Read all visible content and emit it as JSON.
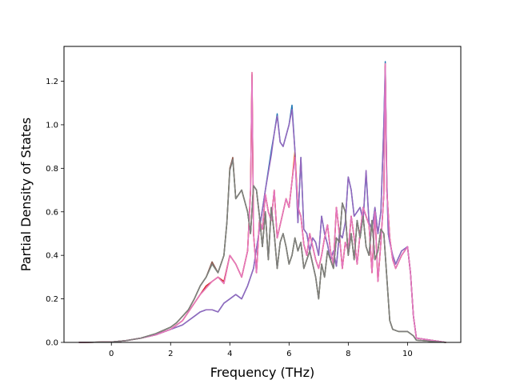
{
  "chart_data": {
    "type": "line",
    "xlabel": "Frequency (THz)",
    "ylabel": "Partial Density of States",
    "xlim": [
      -1.6,
      11.8
    ],
    "ylim": [
      0.0,
      1.36
    ],
    "xticks": [
      0,
      2,
      4,
      6,
      8,
      10
    ],
    "yticks": [
      0.0,
      0.2,
      0.4,
      0.6,
      0.8,
      1.0,
      1.2
    ],
    "xtick_labels": [
      "0",
      "2",
      "4",
      "6",
      "8",
      "10"
    ],
    "ytick_labels": [
      "0.0",
      "0.2",
      "0.4",
      "0.6",
      "0.8",
      "1.0",
      "1.2"
    ],
    "grid": false,
    "series": [
      {
        "color": "#1f77b4",
        "x": [
          -1.1,
          0,
          0.5,
          1.0,
          1.5,
          2.0,
          2.4,
          2.8,
          3.0,
          3.2,
          3.4,
          3.6,
          3.8,
          4.0,
          4.2,
          4.4,
          4.6,
          4.8,
          5.0,
          5.2,
          5.4,
          5.5,
          5.6,
          5.7,
          5.8,
          5.9,
          6.0,
          6.1,
          6.2,
          6.3,
          6.4,
          6.5,
          6.6,
          6.7,
          6.8,
          6.9,
          7.0,
          7.1,
          7.2,
          7.3,
          7.4,
          7.5,
          7.6,
          7.7,
          7.8,
          7.9,
          8.0,
          8.1,
          8.2,
          8.3,
          8.4,
          8.5,
          8.6,
          8.7,
          8.8,
          8.9,
          9.0,
          9.1,
          9.2,
          9.25,
          9.3,
          9.35,
          9.4,
          9.5,
          9.6,
          9.8,
          10.0,
          10.1,
          10.2,
          10.3,
          11.3
        ],
        "y": [
          0,
          0.002,
          0.008,
          0.02,
          0.035,
          0.06,
          0.08,
          0.12,
          0.14,
          0.15,
          0.15,
          0.14,
          0.18,
          0.2,
          0.22,
          0.2,
          0.26,
          0.34,
          0.52,
          0.7,
          0.88,
          0.96,
          1.05,
          0.92,
          0.9,
          0.95,
          1.0,
          1.09,
          0.88,
          0.55,
          0.85,
          0.52,
          0.5,
          0.42,
          0.48,
          0.46,
          0.4,
          0.58,
          0.5,
          0.45,
          0.38,
          0.42,
          0.35,
          0.5,
          0.48,
          0.55,
          0.76,
          0.7,
          0.58,
          0.6,
          0.62,
          0.56,
          0.78,
          0.55,
          0.52,
          0.62,
          0.5,
          0.6,
          1.0,
          1.29,
          0.75,
          0.5,
          0.46,
          0.4,
          0.36,
          0.42,
          0.44,
          0.32,
          0.12,
          0.02,
          0
        ]
      },
      {
        "color": "#ff7f0e",
        "x": [
          -1.1,
          0,
          0.5,
          1.0,
          1.5,
          2.0,
          2.4,
          2.8,
          3.0,
          3.2,
          3.4,
          3.6,
          3.8,
          4.0,
          4.2,
          4.4,
          4.6,
          4.7,
          4.75,
          4.8,
          4.9,
          5.0,
          5.1,
          5.2,
          5.3,
          5.4,
          5.5,
          5.6,
          5.7,
          5.8,
          5.9,
          6.0,
          6.1,
          6.2,
          6.3,
          6.4,
          6.5,
          6.6,
          6.7,
          6.8,
          6.9,
          7.0,
          7.1,
          7.2,
          7.3,
          7.4,
          7.5,
          7.6,
          7.7,
          7.8,
          7.9,
          8.0,
          8.1,
          8.2,
          8.3,
          8.4,
          8.5,
          8.6,
          8.7,
          8.8,
          8.9,
          9.0,
          9.1,
          9.2,
          9.25,
          9.3,
          9.4,
          9.5,
          9.6,
          9.8,
          10.0,
          10.1,
          10.2,
          10.3,
          11.3
        ],
        "y": [
          0,
          0.002,
          0.008,
          0.02,
          0.035,
          0.06,
          0.1,
          0.18,
          0.22,
          0.25,
          0.28,
          0.3,
          0.27,
          0.4,
          0.36,
          0.3,
          0.42,
          0.7,
          1.24,
          0.5,
          0.32,
          0.56,
          0.52,
          0.68,
          0.6,
          0.56,
          0.7,
          0.48,
          0.54,
          0.6,
          0.66,
          0.62,
          0.74,
          0.88,
          0.62,
          0.58,
          0.45,
          0.4,
          0.5,
          0.44,
          0.38,
          0.34,
          0.4,
          0.48,
          0.54,
          0.42,
          0.36,
          0.62,
          0.5,
          0.34,
          0.46,
          0.42,
          0.58,
          0.48,
          0.36,
          0.5,
          0.62,
          0.58,
          0.54,
          0.32,
          0.6,
          0.28,
          0.46,
          0.68,
          1.28,
          0.7,
          0.48,
          0.38,
          0.34,
          0.4,
          0.44,
          0.32,
          0.12,
          0.02,
          0
        ]
      },
      {
        "color": "#2ca02c",
        "x": [
          -1.1,
          0,
          0.5,
          1.0,
          1.5,
          2.0,
          2.2,
          2.4,
          2.6,
          2.8,
          3.0,
          3.2,
          3.4,
          3.6,
          3.8,
          3.9,
          4.0,
          4.1,
          4.2,
          4.4,
          4.6,
          4.7,
          4.8,
          4.9,
          5.0,
          5.1,
          5.2,
          5.3,
          5.4,
          5.5,
          5.6,
          5.7,
          5.8,
          5.9,
          6.0,
          6.1,
          6.2,
          6.3,
          6.4,
          6.5,
          6.6,
          6.7,
          6.8,
          6.9,
          7.0,
          7.1,
          7.2,
          7.3,
          7.4,
          7.5,
          7.6,
          7.7,
          7.8,
          7.9,
          8.0,
          8.1,
          8.2,
          8.3,
          8.4,
          8.5,
          8.6,
          8.7,
          8.8,
          8.9,
          9.0,
          9.1,
          9.2,
          9.3,
          9.4,
          9.5,
          9.7,
          10.0,
          10.2,
          10.3,
          11.3
        ],
        "y": [
          0,
          0.002,
          0.008,
          0.02,
          0.04,
          0.07,
          0.09,
          0.12,
          0.15,
          0.2,
          0.26,
          0.3,
          0.36,
          0.32,
          0.4,
          0.55,
          0.8,
          0.84,
          0.66,
          0.7,
          0.6,
          0.5,
          0.72,
          0.7,
          0.58,
          0.44,
          0.6,
          0.38,
          0.62,
          0.5,
          0.34,
          0.46,
          0.5,
          0.44,
          0.36,
          0.4,
          0.48,
          0.42,
          0.46,
          0.34,
          0.38,
          0.42,
          0.36,
          0.3,
          0.2,
          0.36,
          0.3,
          0.42,
          0.38,
          0.34,
          0.48,
          0.46,
          0.64,
          0.6,
          0.4,
          0.5,
          0.38,
          0.56,
          0.48,
          0.58,
          0.44,
          0.4,
          0.56,
          0.38,
          0.42,
          0.52,
          0.5,
          0.3,
          0.1,
          0.06,
          0.05,
          0.05,
          0.03,
          0.01,
          0
        ]
      },
      {
        "color": "#d62728",
        "x": [
          -1.1,
          0,
          0.5,
          1.0,
          1.5,
          2.0,
          2.4,
          2.8,
          3.0,
          3.2,
          3.4,
          3.6,
          3.8,
          4.0,
          4.2,
          4.4,
          4.6,
          4.7,
          4.75,
          4.8,
          4.9,
          5.0,
          5.1,
          5.2,
          5.3,
          5.4,
          5.5,
          5.6,
          5.7,
          5.8,
          5.9,
          6.0,
          6.1,
          6.2,
          6.3,
          6.4,
          6.5,
          6.6,
          6.7,
          6.8,
          6.9,
          7.0,
          7.1,
          7.2,
          7.3,
          7.4,
          7.5,
          7.6,
          7.7,
          7.8,
          7.9,
          8.0,
          8.1,
          8.2,
          8.3,
          8.4,
          8.5,
          8.6,
          8.7,
          8.8,
          8.9,
          9.0,
          9.1,
          9.2,
          9.25,
          9.3,
          9.4,
          9.5,
          9.6,
          9.8,
          10.0,
          10.1,
          10.2,
          10.3,
          11.3
        ],
        "y": [
          0,
          0.002,
          0.008,
          0.02,
          0.035,
          0.06,
          0.1,
          0.18,
          0.22,
          0.26,
          0.28,
          0.3,
          0.28,
          0.4,
          0.36,
          0.3,
          0.42,
          0.7,
          1.23,
          0.5,
          0.32,
          0.56,
          0.52,
          0.68,
          0.6,
          0.56,
          0.7,
          0.48,
          0.54,
          0.6,
          0.66,
          0.62,
          0.74,
          0.86,
          0.62,
          0.58,
          0.45,
          0.4,
          0.5,
          0.44,
          0.38,
          0.34,
          0.4,
          0.48,
          0.54,
          0.42,
          0.36,
          0.62,
          0.5,
          0.34,
          0.46,
          0.42,
          0.58,
          0.48,
          0.36,
          0.5,
          0.62,
          0.58,
          0.54,
          0.32,
          0.6,
          0.28,
          0.46,
          0.68,
          1.27,
          0.7,
          0.48,
          0.38,
          0.34,
          0.4,
          0.44,
          0.32,
          0.12,
          0.02,
          0
        ]
      },
      {
        "color": "#9467bd",
        "x": [
          -1.1,
          0,
          0.5,
          1.0,
          1.5,
          2.0,
          2.4,
          2.8,
          3.0,
          3.2,
          3.4,
          3.6,
          3.8,
          4.0,
          4.2,
          4.4,
          4.6,
          4.8,
          5.0,
          5.2,
          5.4,
          5.5,
          5.6,
          5.7,
          5.8,
          5.9,
          6.0,
          6.1,
          6.2,
          6.3,
          6.4,
          6.5,
          6.6,
          6.7,
          6.8,
          6.9,
          7.0,
          7.1,
          7.2,
          7.3,
          7.4,
          7.5,
          7.6,
          7.7,
          7.8,
          7.9,
          8.0,
          8.1,
          8.2,
          8.3,
          8.4,
          8.5,
          8.6,
          8.7,
          8.8,
          8.9,
          9.0,
          9.1,
          9.2,
          9.25,
          9.3,
          9.35,
          9.4,
          9.5,
          9.6,
          9.8,
          10.0,
          10.1,
          10.2,
          10.3,
          11.3
        ],
        "y": [
          0,
          0.002,
          0.008,
          0.02,
          0.035,
          0.06,
          0.08,
          0.12,
          0.14,
          0.15,
          0.15,
          0.14,
          0.18,
          0.2,
          0.22,
          0.2,
          0.26,
          0.34,
          0.52,
          0.7,
          0.86,
          0.96,
          1.04,
          0.92,
          0.9,
          0.95,
          1.0,
          1.07,
          0.88,
          0.55,
          0.85,
          0.52,
          0.5,
          0.42,
          0.48,
          0.46,
          0.4,
          0.58,
          0.5,
          0.45,
          0.38,
          0.42,
          0.35,
          0.5,
          0.48,
          0.55,
          0.76,
          0.7,
          0.58,
          0.6,
          0.62,
          0.56,
          0.79,
          0.55,
          0.52,
          0.62,
          0.5,
          0.6,
          1.0,
          1.26,
          0.75,
          0.5,
          0.46,
          0.4,
          0.36,
          0.42,
          0.44,
          0.32,
          0.12,
          0.02,
          0
        ]
      },
      {
        "color": "#8c564b",
        "x": [
          -1.1,
          0,
          0.5,
          1.0,
          1.5,
          2.0,
          2.2,
          2.4,
          2.6,
          2.8,
          3.0,
          3.2,
          3.4,
          3.6,
          3.8,
          3.9,
          4.0,
          4.1,
          4.2,
          4.4,
          4.6,
          4.7,
          4.8,
          4.9,
          5.0,
          5.1,
          5.2,
          5.3,
          5.4,
          5.5,
          5.6,
          5.7,
          5.8,
          5.9,
          6.0,
          6.1,
          6.2,
          6.3,
          6.4,
          6.5,
          6.6,
          6.7,
          6.8,
          6.9,
          7.0,
          7.1,
          7.2,
          7.3,
          7.4,
          7.5,
          7.6,
          7.7,
          7.8,
          7.9,
          8.0,
          8.1,
          8.2,
          8.3,
          8.4,
          8.5,
          8.6,
          8.7,
          8.8,
          8.9,
          9.0,
          9.1,
          9.2,
          9.3,
          9.4,
          9.5,
          9.7,
          10.0,
          10.2,
          10.3,
          11.3
        ],
        "y": [
          0,
          0.002,
          0.008,
          0.02,
          0.04,
          0.07,
          0.09,
          0.12,
          0.15,
          0.2,
          0.26,
          0.3,
          0.37,
          0.32,
          0.4,
          0.55,
          0.8,
          0.85,
          0.66,
          0.7,
          0.6,
          0.5,
          0.72,
          0.7,
          0.58,
          0.44,
          0.6,
          0.38,
          0.62,
          0.5,
          0.34,
          0.46,
          0.5,
          0.44,
          0.36,
          0.4,
          0.48,
          0.42,
          0.46,
          0.34,
          0.38,
          0.42,
          0.36,
          0.3,
          0.2,
          0.36,
          0.3,
          0.42,
          0.38,
          0.34,
          0.48,
          0.46,
          0.64,
          0.6,
          0.4,
          0.5,
          0.38,
          0.56,
          0.48,
          0.58,
          0.44,
          0.4,
          0.56,
          0.38,
          0.42,
          0.52,
          0.5,
          0.3,
          0.1,
          0.06,
          0.05,
          0.05,
          0.03,
          0.01,
          0
        ]
      },
      {
        "color": "#e377c2",
        "x": [
          -1.1,
          0,
          0.5,
          1.0,
          1.5,
          2.0,
          2.4,
          2.8,
          3.0,
          3.2,
          3.4,
          3.6,
          3.8,
          4.0,
          4.2,
          4.4,
          4.6,
          4.7,
          4.75,
          4.8,
          4.9,
          5.0,
          5.1,
          5.2,
          5.3,
          5.4,
          5.5,
          5.6,
          5.7,
          5.8,
          5.9,
          6.0,
          6.1,
          6.2,
          6.3,
          6.4,
          6.5,
          6.6,
          6.7,
          6.8,
          6.9,
          7.0,
          7.1,
          7.2,
          7.3,
          7.4,
          7.5,
          7.6,
          7.7,
          7.8,
          7.9,
          8.0,
          8.1,
          8.2,
          8.3,
          8.4,
          8.5,
          8.6,
          8.7,
          8.8,
          8.9,
          9.0,
          9.1,
          9.2,
          9.25,
          9.3,
          9.4,
          9.5,
          9.6,
          9.8,
          10.0,
          10.1,
          10.2,
          10.3,
          11.3
        ],
        "y": [
          0,
          0.002,
          0.008,
          0.02,
          0.035,
          0.06,
          0.1,
          0.18,
          0.22,
          0.25,
          0.28,
          0.3,
          0.27,
          0.4,
          0.36,
          0.3,
          0.42,
          0.7,
          1.24,
          0.5,
          0.32,
          0.56,
          0.52,
          0.68,
          0.6,
          0.56,
          0.7,
          0.48,
          0.54,
          0.6,
          0.66,
          0.62,
          0.74,
          0.85,
          0.62,
          0.58,
          0.45,
          0.4,
          0.5,
          0.44,
          0.38,
          0.34,
          0.4,
          0.48,
          0.54,
          0.42,
          0.36,
          0.62,
          0.5,
          0.34,
          0.46,
          0.42,
          0.58,
          0.48,
          0.36,
          0.5,
          0.62,
          0.58,
          0.54,
          0.32,
          0.6,
          0.28,
          0.46,
          0.68,
          1.28,
          0.7,
          0.48,
          0.38,
          0.34,
          0.4,
          0.44,
          0.32,
          0.12,
          0.02,
          0
        ]
      },
      {
        "color": "#7f7f7f",
        "x": [
          -1.1,
          0,
          0.5,
          1.0,
          1.5,
          2.0,
          2.2,
          2.4,
          2.6,
          2.8,
          3.0,
          3.2,
          3.4,
          3.6,
          3.8,
          3.9,
          4.0,
          4.1,
          4.2,
          4.4,
          4.6,
          4.7,
          4.8,
          4.9,
          5.0,
          5.1,
          5.2,
          5.3,
          5.4,
          5.5,
          5.6,
          5.7,
          5.8,
          5.9,
          6.0,
          6.1,
          6.2,
          6.3,
          6.4,
          6.5,
          6.6,
          6.7,
          6.8,
          6.9,
          7.0,
          7.1,
          7.2,
          7.3,
          7.4,
          7.5,
          7.6,
          7.7,
          7.8,
          7.9,
          8.0,
          8.1,
          8.2,
          8.3,
          8.4,
          8.5,
          8.6,
          8.7,
          8.8,
          8.9,
          9.0,
          9.1,
          9.2,
          9.3,
          9.4,
          9.5,
          9.7,
          10.0,
          10.2,
          10.3,
          11.3
        ],
        "y": [
          0,
          0.002,
          0.008,
          0.02,
          0.04,
          0.07,
          0.09,
          0.12,
          0.15,
          0.2,
          0.26,
          0.3,
          0.36,
          0.32,
          0.4,
          0.55,
          0.79,
          0.84,
          0.66,
          0.7,
          0.6,
          0.5,
          0.72,
          0.7,
          0.58,
          0.44,
          0.6,
          0.38,
          0.62,
          0.5,
          0.34,
          0.46,
          0.5,
          0.44,
          0.36,
          0.4,
          0.48,
          0.42,
          0.46,
          0.34,
          0.38,
          0.42,
          0.36,
          0.3,
          0.2,
          0.36,
          0.3,
          0.42,
          0.38,
          0.34,
          0.48,
          0.46,
          0.64,
          0.6,
          0.4,
          0.5,
          0.38,
          0.56,
          0.48,
          0.58,
          0.44,
          0.4,
          0.56,
          0.38,
          0.42,
          0.52,
          0.5,
          0.3,
          0.1,
          0.06,
          0.05,
          0.05,
          0.03,
          0.01,
          0
        ]
      }
    ]
  }
}
